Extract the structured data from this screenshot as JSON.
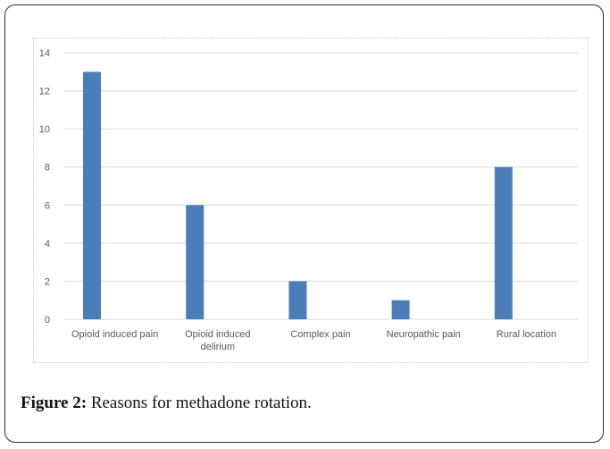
{
  "caption": {
    "label": "Figure 2:",
    "text": "Reasons for methadone rotation."
  },
  "chart_data": {
    "type": "bar",
    "title": "",
    "xlabel": "",
    "ylabel": "",
    "ylim": [
      0,
      14
    ],
    "yticks": [
      0,
      2,
      4,
      6,
      8,
      10,
      12,
      14
    ],
    "grid": true,
    "categories": [
      [
        "Opioid induced pain"
      ],
      [
        "Opioid induced",
        "delirium"
      ],
      [
        "Complex pain"
      ],
      [
        "Neuropathic pain"
      ],
      [
        "Rural location"
      ]
    ],
    "values": [
      13,
      6,
      2,
      1,
      8
    ],
    "bar_color": "#4a7ebb",
    "grid_color": "#d9d9d9"
  }
}
